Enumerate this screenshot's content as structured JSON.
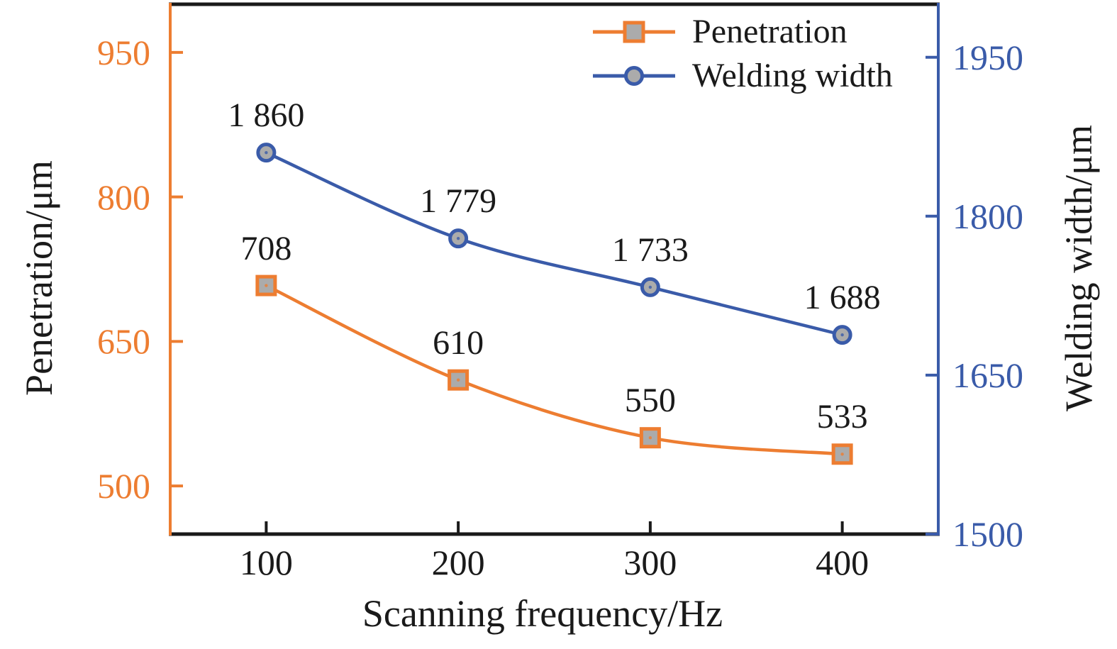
{
  "chart_data": {
    "type": "line",
    "title": "",
    "xlabel": "Scanning frequency/Hz",
    "ylabel_left": "Penetration/μm",
    "ylabel_right": "Welding width/μm",
    "x": [
      100,
      200,
      300,
      400
    ],
    "x_tick_labels": [
      "100",
      "200",
      "300",
      "400"
    ],
    "xlim": [
      50,
      450
    ],
    "grid": false,
    "legend_position": "top-right-inside",
    "frame_color": "#1a1a1a",
    "marker_fill": "#ababab",
    "left_axis": {
      "color": "#ED7D31",
      "lim": [
        450,
        1000
      ],
      "tick_values": [
        500,
        650,
        800,
        950
      ],
      "tick_labels": [
        "500",
        "650",
        "800",
        "950"
      ]
    },
    "right_axis": {
      "color": "#3A5BA9",
      "lim": [
        1500,
        2000
      ],
      "tick_values": [
        1500,
        1650,
        1800,
        1950
      ],
      "tick_labels": [
        "1500",
        "1650",
        "1800",
        "1950"
      ]
    },
    "series": [
      {
        "id": "penetration",
        "name": "Penetration",
        "axis": "left",
        "marker": "square",
        "color": "#ED7D31",
        "values": [
          708,
          610,
          550,
          533
        ],
        "point_labels": [
          "708",
          "610",
          "550",
          "533"
        ]
      },
      {
        "id": "welding-width",
        "name": "Welding width",
        "axis": "right",
        "marker": "circle",
        "color": "#3A5BA9",
        "values": [
          1860,
          1779,
          1733,
          1688
        ],
        "point_labels": [
          "1 860",
          "1 779",
          "1 733",
          "1 688"
        ]
      }
    ]
  }
}
